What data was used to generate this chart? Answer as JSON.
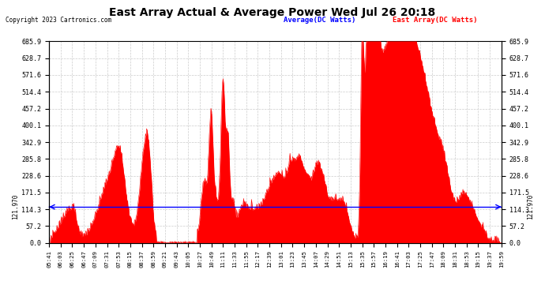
{
  "title": "East Array Actual & Average Power Wed Jul 26 20:18",
  "copyright": "Copyright 2023 Cartronics.com",
  "legend_average": "Average(DC Watts)",
  "legend_east": "East Array(DC Watts)",
  "ymax": 685.9,
  "average_line": 121.97,
  "ytick_labels": [
    "0.0",
    "57.2",
    "114.3",
    "171.5",
    "228.6",
    "285.8",
    "342.9",
    "400.1",
    "457.2",
    "514.4",
    "571.6",
    "628.7",
    "685.9"
  ],
  "ytick_values": [
    0.0,
    57.2,
    114.3,
    171.5,
    228.6,
    285.8,
    342.9,
    400.1,
    457.2,
    514.4,
    571.6,
    628.7,
    685.9
  ],
  "fill_color": "#FF0000",
  "average_color": "#0000FF",
  "background_color": "#FFFFFF",
  "grid_color": "#CCCCCC",
  "title_color": "#000000",
  "xtick_labels": [
    "05:41",
    "06:03",
    "06:25",
    "06:47",
    "07:09",
    "07:31",
    "07:53",
    "08:15",
    "08:37",
    "08:59",
    "09:21",
    "09:43",
    "10:05",
    "10:27",
    "10:49",
    "11:11",
    "11:33",
    "11:55",
    "12:17",
    "12:39",
    "13:01",
    "13:23",
    "13:45",
    "14:07",
    "14:29",
    "14:51",
    "15:13",
    "15:35",
    "15:57",
    "16:19",
    "16:41",
    "17:03",
    "17:25",
    "17:47",
    "18:09",
    "18:31",
    "18:53",
    "19:15",
    "19:37",
    "19:59"
  ]
}
